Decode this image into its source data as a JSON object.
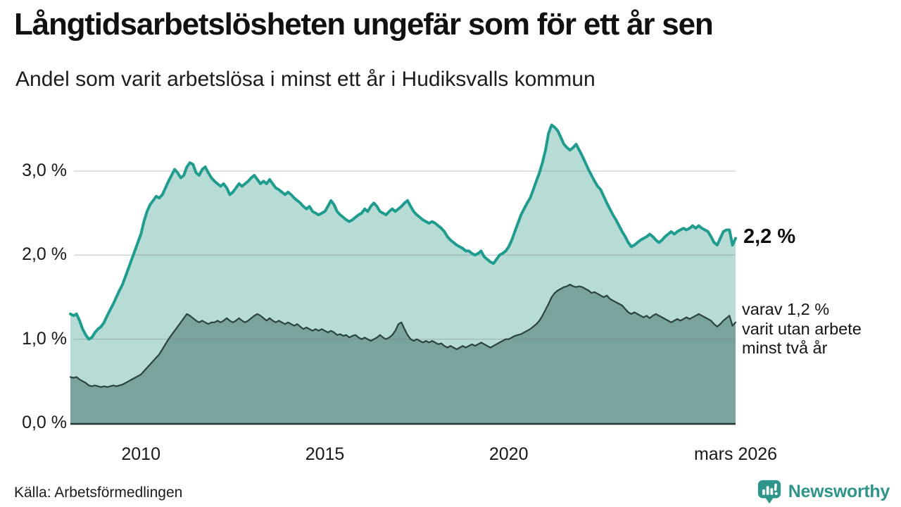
{
  "header": {
    "title": "Långtidsarbetslösheten ungefär som för ett år sen",
    "subtitle": "Andel som varit arbetslösa i minst ett år i Hudiksvalls kommun"
  },
  "footer": {
    "source": "Källa: Arbetsförmedlingen",
    "brand": "Newsworthy"
  },
  "colors": {
    "accent_teal": "#1f9c8e",
    "light_fill": "#b7dcd6",
    "dark_fill": "#79a39c",
    "dark_stroke": "#2c423e",
    "grid": "#dfe3e6",
    "axis": "#233634",
    "brand_teal": "#2f948a",
    "text": "#111111"
  },
  "chart_data": {
    "type": "area",
    "title": "Långtidsarbetslösheten ungefär som för ett år sen",
    "subtitle": "Andel som varit arbetslösa i minst ett år i Hudiksvalls kommun",
    "source": "Källa: Arbetsförmedlingen",
    "unit": "%",
    "grid": "horizontal",
    "legend": "none",
    "x_range": [
      2008.083,
      2026.167
    ],
    "ylim": [
      0,
      3.6285
    ],
    "y_ticks": [
      {
        "v": 0,
        "label": "0,0 %"
      },
      {
        "v": 1,
        "label": "1,0 %"
      },
      {
        "v": 2,
        "label": "2,0 %"
      },
      {
        "v": 3,
        "label": "3,0 %"
      }
    ],
    "x_ticks": [
      {
        "t": 2010,
        "label": "2010"
      },
      {
        "t": 2015,
        "label": "2015"
      },
      {
        "t": 2020,
        "label": "2020"
      },
      {
        "t": 2026.167,
        "label": "mars 2026"
      }
    ],
    "annotations": {
      "latest_value": "2,2 %",
      "secondary_lines": [
        "varav 1,2 %",
        "varit utan arbete",
        "minst två år"
      ]
    },
    "series": [
      {
        "name": "Andel arbetslösa minst ett år",
        "color": "#1f9c8e",
        "fill": "#b7dcd6",
        "line_width": 4,
        "start": 2008.0833,
        "points_per_year": 12,
        "end_label": "2,2 %",
        "values": [
          1.3,
          1.28,
          1.3,
          1.22,
          1.12,
          1.05,
          1.0,
          1.02,
          1.08,
          1.12,
          1.15,
          1.2,
          1.28,
          1.35,
          1.42,
          1.5,
          1.58,
          1.65,
          1.75,
          1.85,
          1.95,
          2.05,
          2.15,
          2.25,
          2.4,
          2.52,
          2.6,
          2.65,
          2.7,
          2.68,
          2.72,
          2.8,
          2.88,
          2.95,
          3.02,
          2.98,
          2.92,
          2.95,
          3.05,
          3.1,
          3.08,
          2.98,
          2.95,
          3.02,
          3.05,
          2.98,
          2.92,
          2.88,
          2.85,
          2.82,
          2.85,
          2.8,
          2.72,
          2.75,
          2.8,
          2.85,
          2.82,
          2.85,
          2.88,
          2.92,
          2.95,
          2.9,
          2.85,
          2.88,
          2.85,
          2.9,
          2.85,
          2.8,
          2.78,
          2.75,
          2.72,
          2.75,
          2.72,
          2.68,
          2.65,
          2.62,
          2.58,
          2.55,
          2.58,
          2.52,
          2.5,
          2.48,
          2.5,
          2.52,
          2.58,
          2.65,
          2.6,
          2.52,
          2.48,
          2.45,
          2.42,
          2.4,
          2.42,
          2.45,
          2.48,
          2.5,
          2.55,
          2.52,
          2.58,
          2.62,
          2.58,
          2.52,
          2.5,
          2.48,
          2.52,
          2.55,
          2.52,
          2.55,
          2.58,
          2.62,
          2.65,
          2.58,
          2.52,
          2.48,
          2.45,
          2.42,
          2.4,
          2.38,
          2.4,
          2.38,
          2.35,
          2.32,
          2.28,
          2.22,
          2.18,
          2.15,
          2.12,
          2.1,
          2.08,
          2.05,
          2.05,
          2.02,
          2.0,
          2.02,
          2.05,
          1.98,
          1.95,
          1.92,
          1.9,
          1.95,
          2.0,
          2.02,
          2.05,
          2.1,
          2.18,
          2.28,
          2.38,
          2.48,
          2.55,
          2.62,
          2.68,
          2.78,
          2.88,
          2.98,
          3.1,
          3.25,
          3.45,
          3.55,
          3.52,
          3.48,
          3.4,
          3.32,
          3.28,
          3.25,
          3.28,
          3.32,
          3.25,
          3.18,
          3.1,
          3.02,
          2.95,
          2.88,
          2.82,
          2.78,
          2.7,
          2.62,
          2.55,
          2.48,
          2.42,
          2.35,
          2.28,
          2.22,
          2.15,
          2.1,
          2.12,
          2.15,
          2.18,
          2.2,
          2.22,
          2.25,
          2.22,
          2.18,
          2.15,
          2.18,
          2.22,
          2.25,
          2.28,
          2.25,
          2.28,
          2.3,
          2.32,
          2.3,
          2.32,
          2.35,
          2.32,
          2.35,
          2.32,
          2.3,
          2.28,
          2.22,
          2.15,
          2.12,
          2.2,
          2.28,
          2.3,
          2.3,
          2.12,
          2.2
        ]
      },
      {
        "name": "Andel arbetslösa minst två år",
        "color": "#2c423e",
        "fill": "#79a39c",
        "line_width": 2.2,
        "start": 2008.0833,
        "points_per_year": 12,
        "end_label": "varav 1,2 % varit utan arbete minst två år",
        "values": [
          0.55,
          0.54,
          0.55,
          0.52,
          0.5,
          0.48,
          0.45,
          0.44,
          0.45,
          0.44,
          0.43,
          0.44,
          0.43,
          0.44,
          0.45,
          0.44,
          0.45,
          0.46,
          0.48,
          0.5,
          0.52,
          0.54,
          0.56,
          0.58,
          0.62,
          0.66,
          0.7,
          0.74,
          0.78,
          0.82,
          0.88,
          0.94,
          1.0,
          1.05,
          1.1,
          1.15,
          1.2,
          1.25,
          1.3,
          1.28,
          1.25,
          1.22,
          1.2,
          1.22,
          1.2,
          1.18,
          1.2,
          1.2,
          1.22,
          1.2,
          1.22,
          1.25,
          1.22,
          1.2,
          1.22,
          1.25,
          1.22,
          1.2,
          1.22,
          1.25,
          1.28,
          1.3,
          1.28,
          1.25,
          1.22,
          1.25,
          1.22,
          1.2,
          1.22,
          1.2,
          1.18,
          1.2,
          1.18,
          1.16,
          1.18,
          1.15,
          1.12,
          1.14,
          1.12,
          1.1,
          1.12,
          1.1,
          1.12,
          1.1,
          1.08,
          1.1,
          1.08,
          1.05,
          1.06,
          1.04,
          1.05,
          1.02,
          1.04,
          1.05,
          1.02,
          1.0,
          1.02,
          1.0,
          0.98,
          1.0,
          1.02,
          1.05,
          1.02,
          1.0,
          1.02,
          1.05,
          1.1,
          1.18,
          1.2,
          1.12,
          1.05,
          1.0,
          0.98,
          1.0,
          0.98,
          0.96,
          0.98,
          0.96,
          0.98,
          0.96,
          0.94,
          0.95,
          0.92,
          0.9,
          0.92,
          0.9,
          0.88,
          0.9,
          0.92,
          0.9,
          0.92,
          0.94,
          0.92,
          0.94,
          0.96,
          0.94,
          0.92,
          0.9,
          0.92,
          0.94,
          0.96,
          0.98,
          1.0,
          1.0,
          1.02,
          1.04,
          1.05,
          1.06,
          1.08,
          1.1,
          1.12,
          1.15,
          1.18,
          1.22,
          1.28,
          1.35,
          1.42,
          1.5,
          1.55,
          1.58,
          1.6,
          1.62,
          1.63,
          1.65,
          1.63,
          1.62,
          1.63,
          1.62,
          1.6,
          1.58,
          1.55,
          1.56,
          1.54,
          1.52,
          1.5,
          1.52,
          1.48,
          1.46,
          1.44,
          1.42,
          1.4,
          1.36,
          1.32,
          1.3,
          1.32,
          1.3,
          1.28,
          1.26,
          1.28,
          1.25,
          1.28,
          1.3,
          1.28,
          1.26,
          1.24,
          1.22,
          1.2,
          1.22,
          1.24,
          1.22,
          1.24,
          1.26,
          1.24,
          1.26,
          1.28,
          1.3,
          1.28,
          1.26,
          1.24,
          1.22,
          1.18,
          1.15,
          1.18,
          1.22,
          1.25,
          1.28,
          1.16,
          1.2
        ]
      }
    ]
  }
}
